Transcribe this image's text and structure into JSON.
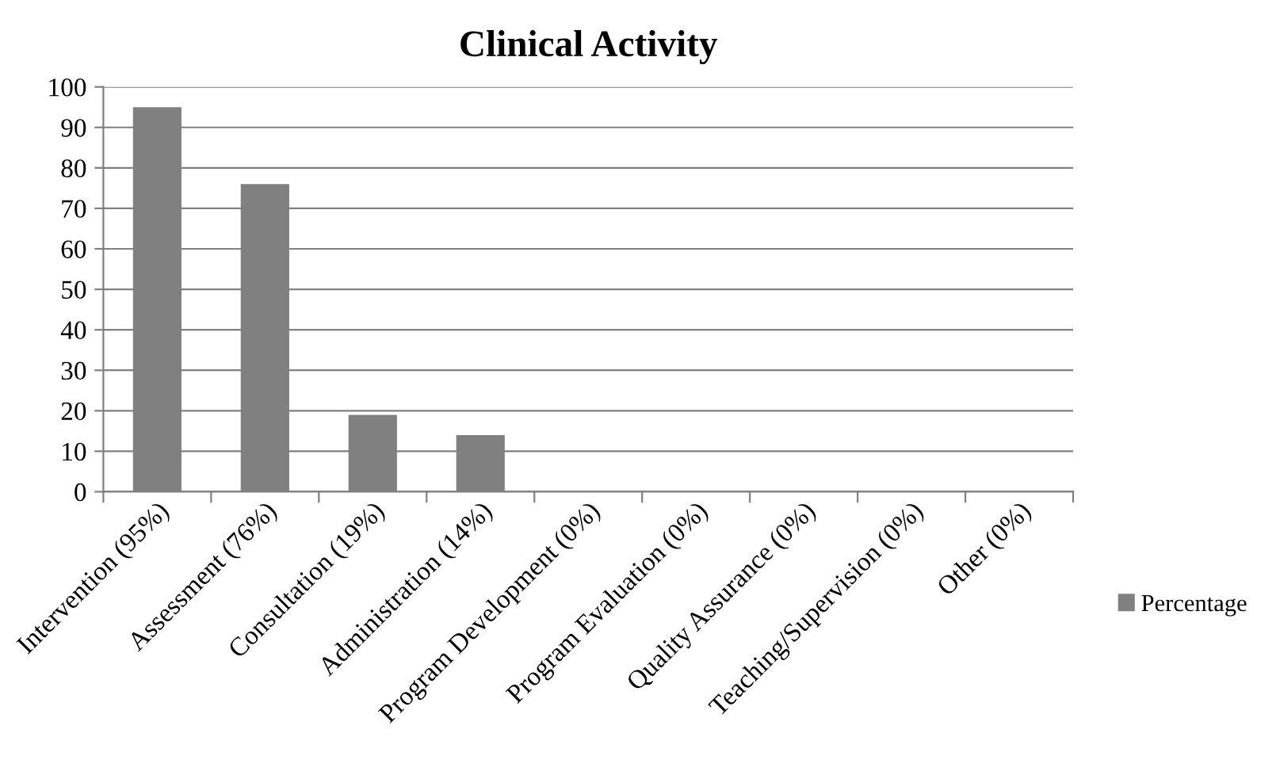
{
  "chart_data": {
    "type": "bar",
    "title": "Clinical Activity",
    "categories": [
      "Intervention (95%)",
      "Assessment (76%)",
      "Consultation (19%)",
      "Administration (14%)",
      "Program Development (0%)",
      "Program Evaluation (0%)",
      "Quality Assurance (0%)",
      "Teaching/Supervision (0%)",
      "Other (0%)"
    ],
    "series": [
      {
        "name": "Percentage",
        "color": "#808080",
        "values": [
          95,
          76,
          19,
          14,
          0,
          0,
          0,
          0,
          0
        ]
      }
    ],
    "ylim": [
      0,
      100
    ],
    "yticks": [
      0,
      10,
      20,
      30,
      40,
      50,
      60,
      70,
      80,
      90,
      100
    ],
    "grid": "y",
    "legend": "right"
  }
}
